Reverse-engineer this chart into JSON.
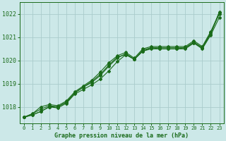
{
  "title": "Graphe pression niveau de la mer (hPa)",
  "background_color": "#cce8e8",
  "grid_color": "#aacccc",
  "line_color": "#1a6b1a",
  "text_color": "#1a6b1a",
  "xlim": [
    -0.5,
    23.5
  ],
  "ylim": [
    1017.3,
    1022.5
  ],
  "yticks": [
    1018,
    1019,
    1020,
    1021,
    1022
  ],
  "xticks": [
    0,
    1,
    2,
    3,
    4,
    5,
    6,
    7,
    8,
    9,
    10,
    11,
    12,
    13,
    14,
    15,
    16,
    17,
    18,
    19,
    20,
    21,
    22,
    23
  ],
  "series": [
    [
      1017.55,
      1017.65,
      1017.8,
      1018.0,
      1017.95,
      1018.15,
      1018.55,
      1018.75,
      1018.95,
      1019.2,
      1019.55,
      1019.95,
      1020.25,
      1020.05,
      1020.4,
      1020.55,
      1020.5,
      1020.5,
      1020.5,
      1020.55,
      1020.75,
      1020.55,
      1021.15,
      1022.1
    ],
    [
      1017.55,
      1017.65,
      1017.8,
      1018.0,
      1018.0,
      1018.2,
      1018.6,
      1018.85,
      1019.05,
      1019.35,
      1019.75,
      1020.1,
      1020.3,
      1020.05,
      1020.45,
      1020.55,
      1020.55,
      1020.55,
      1020.55,
      1020.55,
      1020.8,
      1020.55,
      1021.2,
      1022.0
    ],
    [
      1017.55,
      1017.7,
      1017.9,
      1018.05,
      1018.0,
      1018.2,
      1018.6,
      1018.85,
      1019.1,
      1019.4,
      1019.8,
      1020.15,
      1020.25,
      1020.05,
      1020.4,
      1020.5,
      1020.5,
      1020.5,
      1020.5,
      1020.5,
      1020.75,
      1020.5,
      1021.1,
      1021.85
    ],
    [
      1017.55,
      1017.7,
      1018.0,
      1018.1,
      1018.05,
      1018.25,
      1018.65,
      1018.9,
      1019.15,
      1019.5,
      1019.9,
      1020.2,
      1020.35,
      1020.1,
      1020.5,
      1020.6,
      1020.6,
      1020.6,
      1020.6,
      1020.6,
      1020.85,
      1020.6,
      1021.25,
      1022.05
    ]
  ]
}
